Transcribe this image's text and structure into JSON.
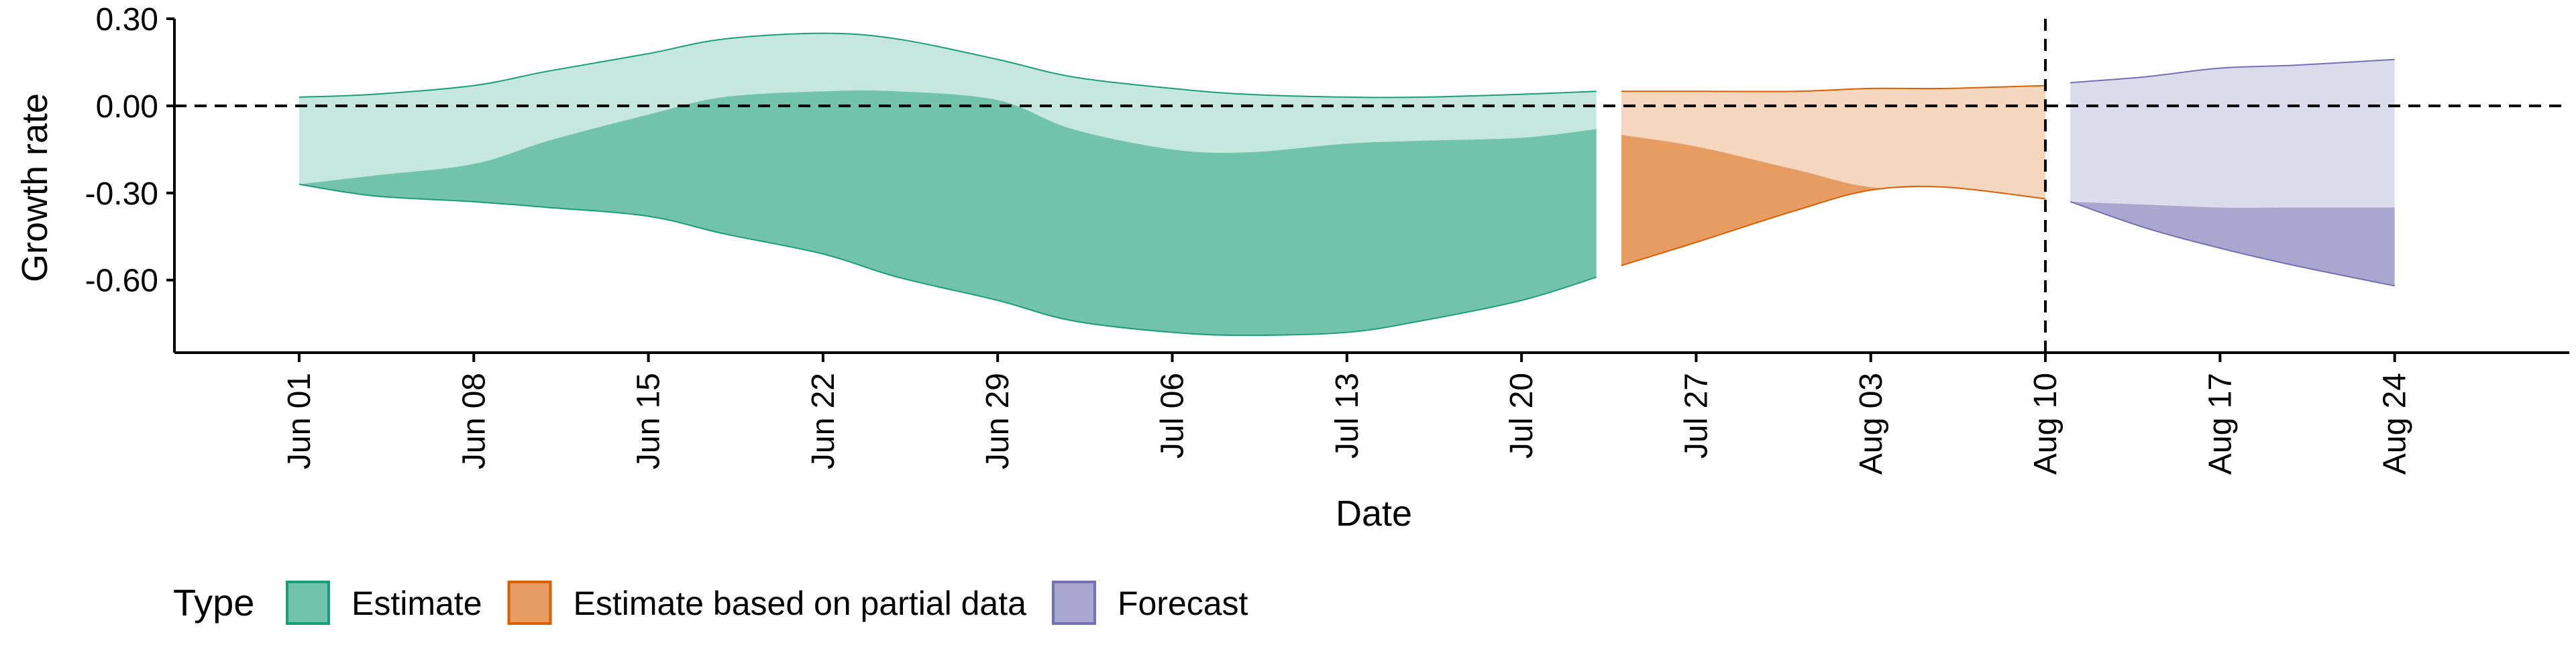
{
  "chart_data": {
    "type": "area",
    "title": "",
    "xlabel": "Date",
    "ylabel": "Growth rate",
    "x_ticks": [
      "Jun 01",
      "Jun 08",
      "Jun 15",
      "Jun 22",
      "Jun 29",
      "Jul 06",
      "Jul 13",
      "Jul 20",
      "Jul 27",
      "Aug 03",
      "Aug 10",
      "Aug 17",
      "Aug 24"
    ],
    "y_ticks": [
      "0.30",
      "0.00",
      "-0.30",
      "-0.60"
    ],
    "ylim": [
      -0.85,
      0.3
    ],
    "xlim": [
      "2020-05-27",
      "2020-08-31"
    ],
    "grid": false,
    "reference_lines": {
      "horizontal_y": 0.0,
      "vertical_x": "2020-08-10",
      "style": "dashed"
    },
    "legend": {
      "title": "Type",
      "position": "bottom-left",
      "items": [
        {
          "label": "Estimate",
          "color": "#1b9e77"
        },
        {
          "label": "Estimate based on partial data",
          "color": "#d95f02"
        },
        {
          "label": "Forecast",
          "color": "#7570b3"
        }
      ]
    },
    "series": [
      {
        "name": "Estimate",
        "color": "#1b9e77",
        "x": [
          "2020-06-01",
          "2020-06-04",
          "2020-06-08",
          "2020-06-11",
          "2020-06-15",
          "2020-06-18",
          "2020-06-22",
          "2020-06-25",
          "2020-06-29",
          "2020-07-02",
          "2020-07-06",
          "2020-07-09",
          "2020-07-13",
          "2020-07-16",
          "2020-07-20",
          "2020-07-23"
        ],
        "outer_low": [
          -0.27,
          -0.31,
          -0.33,
          -0.35,
          -0.38,
          -0.44,
          -0.51,
          -0.59,
          -0.67,
          -0.74,
          -0.78,
          -0.79,
          -0.78,
          -0.74,
          -0.67,
          -0.59
        ],
        "inner_low": [
          -0.27,
          -0.24,
          -0.2,
          -0.12,
          -0.03,
          0.03,
          0.05,
          0.05,
          0.02,
          -0.08,
          -0.15,
          -0.16,
          -0.13,
          -0.12,
          -0.11,
          -0.08
        ],
        "inner_high": [
          -0.27,
          -0.24,
          -0.2,
          -0.12,
          -0.03,
          0.03,
          0.05,
          0.05,
          0.02,
          -0.08,
          -0.15,
          -0.16,
          -0.13,
          -0.12,
          -0.11,
          -0.08
        ],
        "outer_high": [
          0.03,
          0.04,
          0.07,
          0.12,
          0.18,
          0.23,
          0.25,
          0.23,
          0.16,
          0.1,
          0.06,
          0.04,
          0.03,
          0.03,
          0.04,
          0.05
        ]
      },
      {
        "name": "Estimate based on partial data",
        "color": "#d95f02",
        "x": [
          "2020-07-24",
          "2020-07-27",
          "2020-07-31",
          "2020-08-03",
          "2020-08-06",
          "2020-08-10"
        ],
        "outer_low": [
          -0.55,
          -0.47,
          -0.36,
          -0.29,
          -0.28,
          -0.32
        ],
        "inner_low": [
          -0.55,
          -0.47,
          -0.36,
          -0.29,
          -0.28,
          -0.32
        ],
        "inner_high": [
          -0.1,
          -0.14,
          -0.22,
          -0.28,
          -0.28,
          -0.32
        ],
        "outer_high": [
          0.05,
          0.05,
          0.05,
          0.06,
          0.06,
          0.07
        ]
      },
      {
        "name": "Forecast",
        "color": "#7570b3",
        "x": [
          "2020-08-11",
          "2020-08-14",
          "2020-08-17",
          "2020-08-20",
          "2020-08-24"
        ],
        "outer_low": [
          -0.33,
          -0.42,
          -0.49,
          -0.55,
          -0.62
        ],
        "inner_low": [
          -0.33,
          -0.42,
          -0.49,
          -0.55,
          -0.62
        ],
        "inner_high": [
          -0.33,
          -0.34,
          -0.35,
          -0.35,
          -0.35
        ],
        "outer_high": [
          0.08,
          0.1,
          0.13,
          0.14,
          0.16
        ]
      }
    ]
  }
}
